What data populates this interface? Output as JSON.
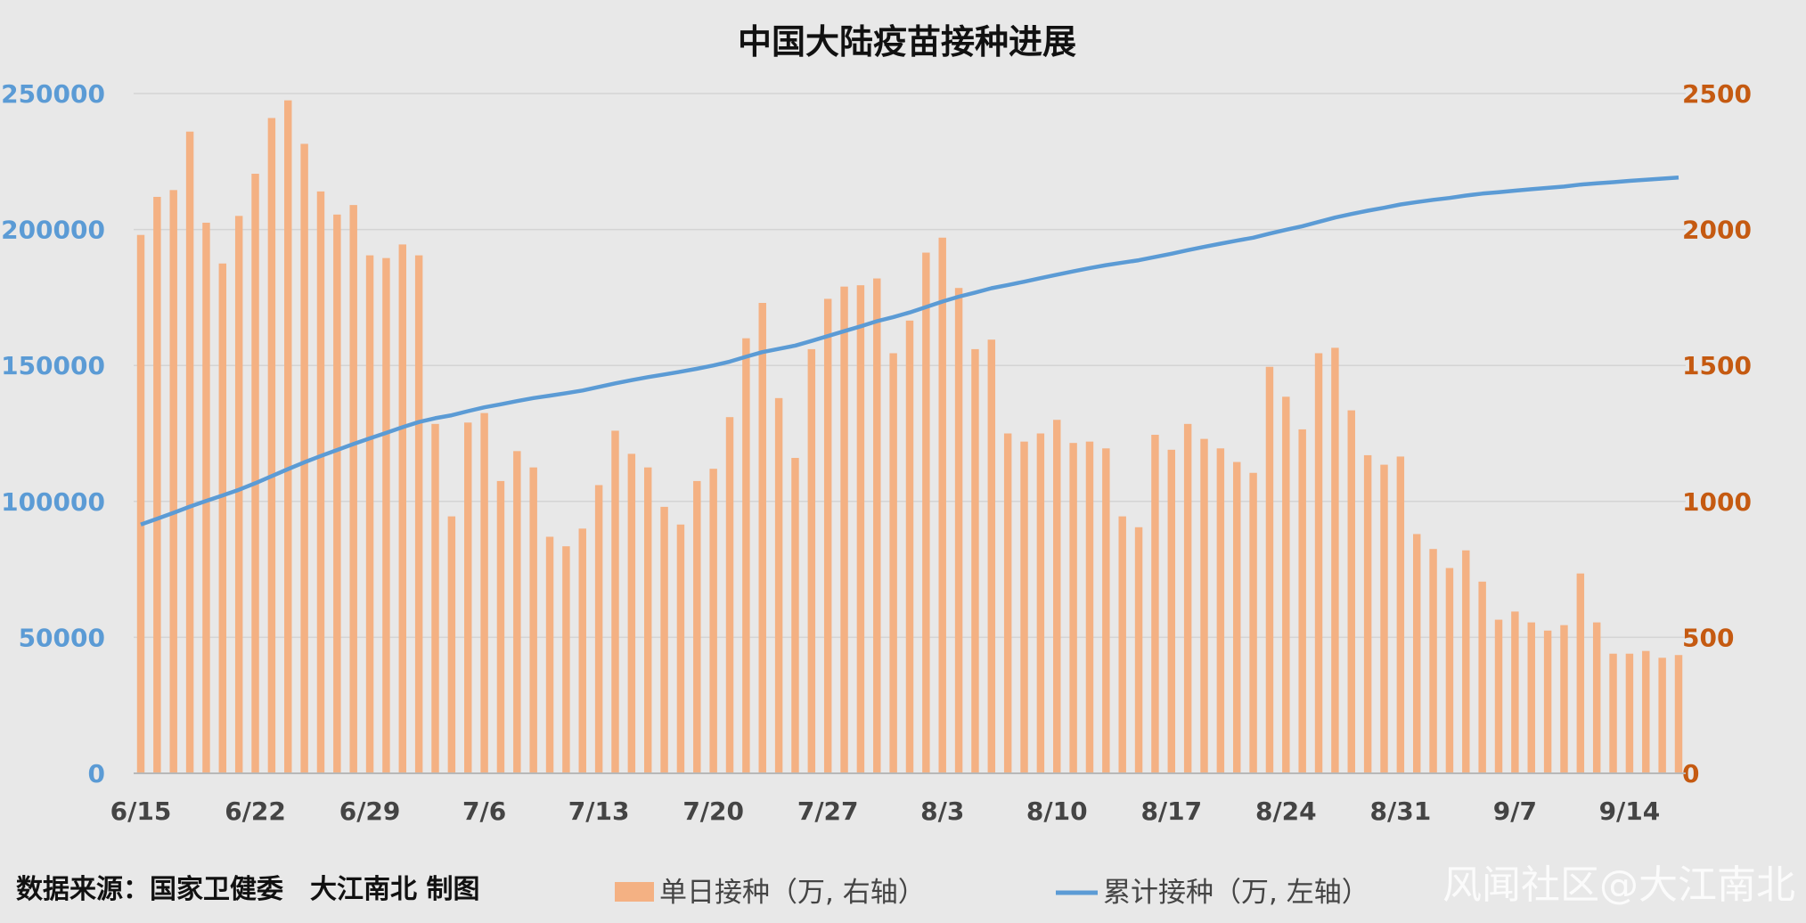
{
  "chart_data": {
    "type": "bar",
    "title": "中国大陆疫苗接种进展",
    "x": [
      "6/15",
      "6/16",
      "6/17",
      "6/18",
      "6/19",
      "6/20",
      "6/21",
      "6/22",
      "6/23",
      "6/24",
      "6/25",
      "6/26",
      "6/27",
      "6/28",
      "6/29",
      "6/30",
      "7/1",
      "7/2",
      "7/3",
      "7/4",
      "7/5",
      "7/6",
      "7/7",
      "7/8",
      "7/9",
      "7/10",
      "7/11",
      "7/12",
      "7/13",
      "7/14",
      "7/15",
      "7/16",
      "7/17",
      "7/18",
      "7/19",
      "7/20",
      "7/21",
      "7/22",
      "7/23",
      "7/24",
      "7/25",
      "7/26",
      "7/27",
      "7/28",
      "7/29",
      "7/30",
      "7/31",
      "8/1",
      "8/2",
      "8/3",
      "8/4",
      "8/5",
      "8/6",
      "8/7",
      "8/8",
      "8/9",
      "8/10",
      "8/11",
      "8/12",
      "8/13",
      "8/14",
      "8/15",
      "8/16",
      "8/17",
      "8/18",
      "8/19",
      "8/20",
      "8/21",
      "8/22",
      "8/23",
      "8/24",
      "8/25",
      "8/26",
      "8/27",
      "8/28",
      "8/29",
      "8/30",
      "8/31",
      "9/1",
      "9/2",
      "9/3",
      "9/4",
      "9/5",
      "9/6",
      "9/7",
      "9/8",
      "9/9",
      "9/10",
      "9/11",
      "9/12",
      "9/13",
      "9/14",
      "9/15",
      "9/16",
      "9/17"
    ],
    "xticks": [
      "6/15",
      "6/22",
      "6/29",
      "7/6",
      "7/13",
      "7/20",
      "7/27",
      "8/3",
      "8/10",
      "8/17",
      "8/24",
      "8/31",
      "9/7",
      "9/14"
    ],
    "series": [
      {
        "name": "单日接种（万, 右轴）",
        "type": "bar",
        "axis": "right",
        "color": "#f4b183",
        "values": [
          1980,
          2120,
          2145,
          2360,
          2025,
          1875,
          2050,
          2205,
          2410,
          2475,
          2315,
          2140,
          2055,
          2090,
          1905,
          1895,
          1945,
          1905,
          1285,
          945,
          1290,
          1325,
          1075,
          1185,
          1125,
          870,
          835,
          900,
          1060,
          1260,
          1175,
          1125,
          980,
          915,
          1075,
          1120,
          1310,
          1600,
          1730,
          1380,
          1160,
          1560,
          1745,
          1790,
          1795,
          1820,
          1545,
          1665,
          1915,
          1970,
          1785,
          1560,
          1595,
          1250,
          1220,
          1250,
          1300,
          1215,
          1220,
          1195,
          945,
          905,
          1245,
          1190,
          1285,
          1230,
          1195,
          1145,
          1105,
          1495,
          1385,
          1265,
          1545,
          1565,
          1335,
          1170,
          1135,
          1165,
          880,
          825,
          755,
          820,
          705,
          565,
          595,
          555,
          525,
          545,
          735,
          555,
          440,
          440,
          450,
          425,
          435
        ]
      },
      {
        "name": "累计接种（万, 左轴）",
        "type": "line",
        "axis": "left",
        "color": "#5b9bd5",
        "values": [
          91500,
          93600,
          95800,
          98100,
          100200,
          102200,
          104300,
          106700,
          109300,
          111900,
          114400,
          116700,
          118900,
          121100,
          123200,
          125200,
          127300,
          129200,
          130600,
          131700,
          133200,
          134600,
          135700,
          136900,
          138000,
          138900,
          139800,
          140800,
          142100,
          143400,
          144600,
          145700,
          146700,
          147700,
          148800,
          150000,
          151400,
          153200,
          154900,
          156100,
          157300,
          159000,
          160800,
          162600,
          164400,
          166300,
          167800,
          169500,
          171500,
          173500,
          175300,
          176800,
          178400,
          179600,
          180800,
          182100,
          183400,
          184600,
          185800,
          186900,
          187800,
          188700,
          189900,
          191100,
          192400,
          193600,
          194800,
          195900,
          197000,
          198500,
          199900,
          201200,
          202800,
          204400,
          205700,
          206900,
          208000,
          209200,
          210100,
          210900,
          211600,
          212500,
          213200,
          213700,
          214300,
          214800,
          215300,
          215800,
          216500,
          217000,
          217400,
          217900,
          218300,
          218700,
          219100
        ]
      }
    ],
    "y_left": {
      "min": 0,
      "max": 250000,
      "ticks": [
        "0",
        "50000",
        "100000",
        "150000",
        "200000",
        "250000"
      ]
    },
    "y_right": {
      "min": 0,
      "max": 2500,
      "ticks": [
        "0",
        "500",
        "1000",
        "1500",
        "2000",
        "2500"
      ]
    },
    "grid": true,
    "legend_position": "bottom"
  },
  "footer": {
    "source": "数据来源：国家卫健委　大江南北 制图",
    "watermark": "风闻社区@大江南北"
  },
  "colors": {
    "left_axis": "#5b9bd5",
    "right_axis": "#c55a11",
    "background": "#e8e8e8"
  }
}
